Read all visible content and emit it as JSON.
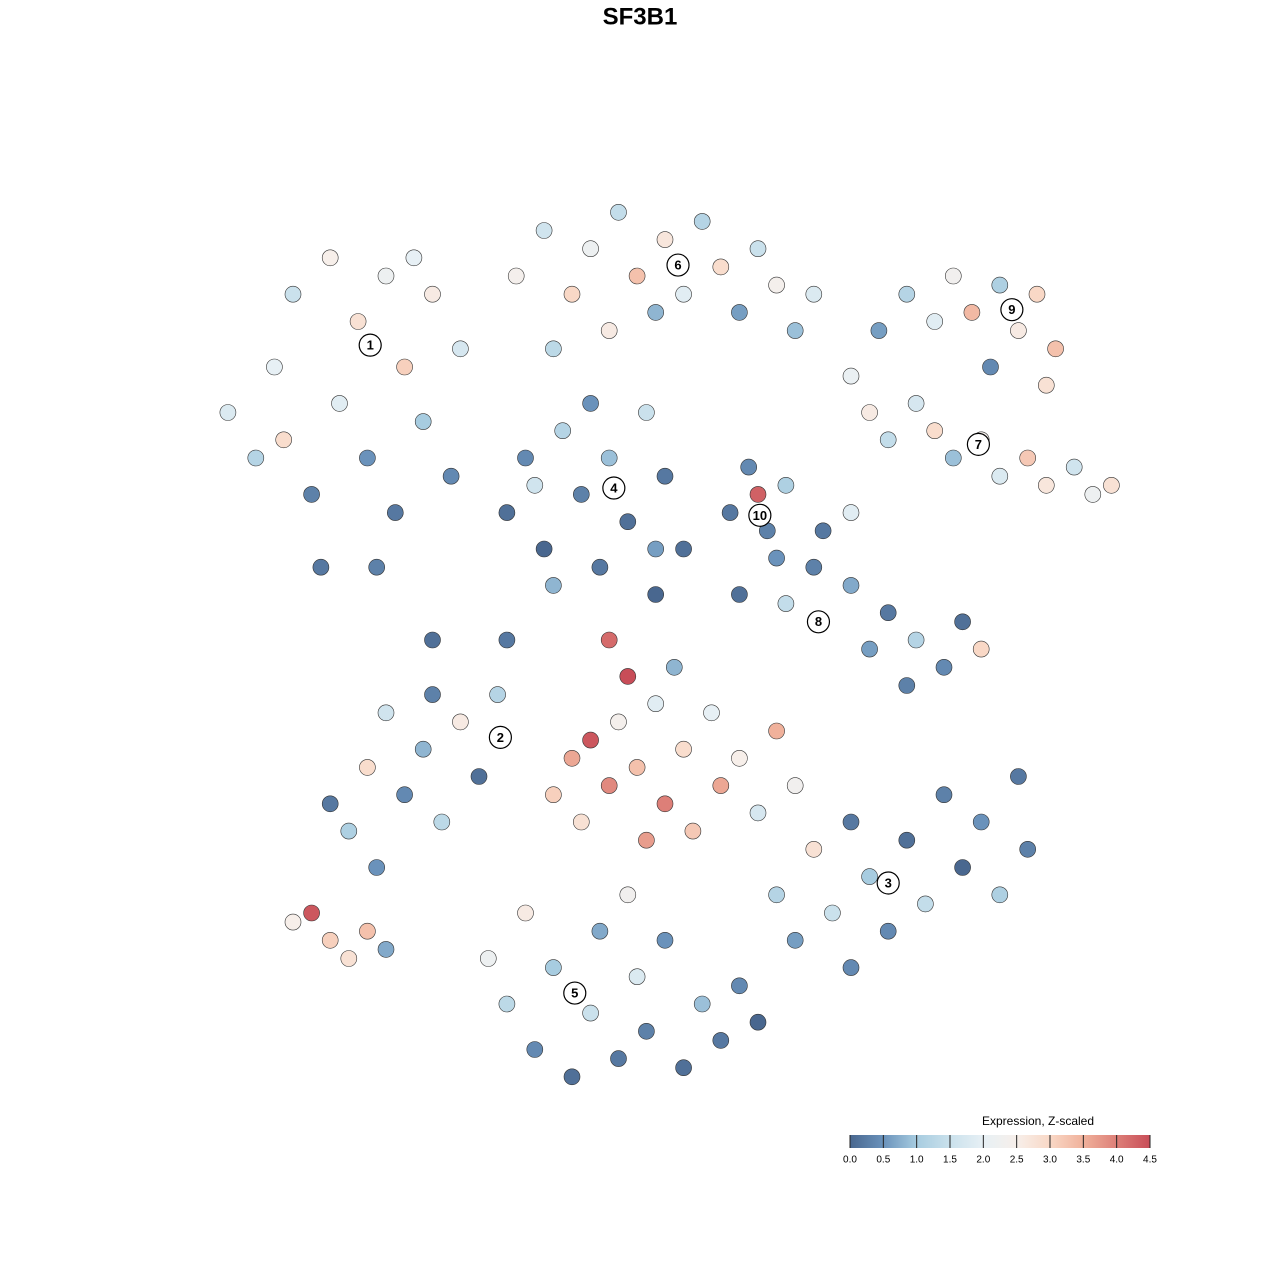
{
  "chart_data": {
    "type": "scatter",
    "title": "SF3B1",
    "xlim": [
      0,
      100
    ],
    "ylim": [
      0,
      100
    ],
    "x": [
      3,
      6,
      8,
      10,
      12,
      14,
      15,
      17,
      18,
      20,
      21,
      22,
      24,
      25,
      27,
      28,
      13,
      19,
      9,
      23,
      34,
      37,
      40,
      42,
      45,
      47,
      49,
      50,
      52,
      54,
      56,
      58,
      60,
      62,
      64,
      66,
      44,
      38,
      73,
      76,
      79,
      81,
      83,
      86,
      88,
      90,
      92,
      91,
      85,
      70,
      72,
      74,
      77,
      79,
      81,
      84,
      86,
      89,
      91,
      94,
      96,
      98,
      33,
      35,
      37,
      39,
      41,
      43,
      44,
      46,
      48,
      49,
      50,
      38,
      42,
      36,
      57,
      59,
      60,
      61,
      63,
      62,
      58,
      63,
      66,
      70,
      74,
      77,
      80,
      82,
      84,
      72,
      76,
      67,
      70,
      14,
      16,
      18,
      20,
      22,
      24,
      26,
      28,
      30,
      32,
      19,
      25,
      10,
      12,
      14,
      16,
      18,
      20,
      38,
      40,
      41,
      42,
      44,
      45,
      47,
      48,
      49,
      50,
      52,
      53,
      55,
      56,
      58,
      60,
      62,
      64,
      46,
      51,
      44,
      62,
      64,
      66,
      68,
      70,
      72,
      74,
      76,
      78,
      80,
      82,
      84,
      86,
      88,
      89,
      70,
      31,
      33,
      35,
      36,
      38,
      40,
      42,
      43,
      45,
      47,
      48,
      50,
      52,
      54,
      56,
      58,
      60,
      46,
      25,
      33,
      49,
      52
    ],
    "y": [
      75,
      70,
      80,
      88,
      66,
      92,
      76,
      85,
      70,
      90,
      64,
      80,
      74,
      88,
      68,
      82,
      58,
      58,
      72,
      92,
      90,
      95,
      88,
      93,
      97,
      90,
      86,
      94,
      88,
      96,
      91,
      86,
      93,
      89,
      84,
      88,
      84,
      82,
      84,
      88,
      85,
      90,
      86,
      89,
      84,
      88,
      82,
      78,
      80,
      79,
      75,
      72,
      76,
      73,
      70,
      72,
      68,
      70,
      67,
      69,
      66,
      67,
      64,
      70,
      60,
      73,
      66,
      58,
      70,
      63,
      75,
      60,
      68,
      56,
      76,
      67,
      64,
      69,
      66,
      62,
      67,
      59,
      55,
      54,
      58,
      56,
      53,
      50,
      47,
      52,
      49,
      49,
      45,
      62,
      64,
      32,
      29,
      36,
      42,
      33,
      38,
      30,
      41,
      35,
      44,
      25,
      44,
      19,
      20,
      17,
      15,
      18,
      16,
      33,
      37,
      30,
      39,
      34,
      41,
      36,
      28,
      43,
      32,
      38,
      29,
      42,
      34,
      37,
      31,
      40,
      34,
      46,
      47,
      50,
      22,
      17,
      27,
      20,
      30,
      24,
      18,
      28,
      21,
      33,
      25,
      30,
      22,
      35,
      27,
      14,
      15,
      10,
      20,
      5,
      14,
      2,
      9,
      18,
      4,
      13,
      7,
      17,
      3,
      10,
      6,
      12,
      8,
      22,
      50,
      50,
      55,
      60
    ],
    "values": [
      1.8,
      1.2,
      2.0,
      1.5,
      0.3,
      2.5,
      1.9,
      2.8,
      0.5,
      2.2,
      0.2,
      3.1,
      1.0,
      2.6,
      0.4,
      1.7,
      0.2,
      0.3,
      2.9,
      2.0,
      2.4,
      1.6,
      3.0,
      2.2,
      1.4,
      3.3,
      0.8,
      2.7,
      1.9,
      1.2,
      2.9,
      0.6,
      1.5,
      2.4,
      0.9,
      1.8,
      2.6,
      1.3,
      0.6,
      1.2,
      1.9,
      2.3,
      3.4,
      1.1,
      2.6,
      3.0,
      3.3,
      2.8,
      0.4,
      2.1,
      2.6,
      1.4,
      1.7,
      2.9,
      0.9,
      2.4,
      1.8,
      3.2,
      2.7,
      1.6,
      2.2,
      2.8,
      0.1,
      0.4,
      0.0,
      1.2,
      0.3,
      0.2,
      0.9,
      0.1,
      1.5,
      0.6,
      0.2,
      0.8,
      0.5,
      1.6,
      0.2,
      0.4,
      4.3,
      0.3,
      1.1,
      0.5,
      0.1,
      1.4,
      0.3,
      0.7,
      0.2,
      1.2,
      0.4,
      0.1,
      3.0,
      0.6,
      0.3,
      0.2,
      1.9,
      0.2,
      1.1,
      2.9,
      1.6,
      0.4,
      0.8,
      1.3,
      2.6,
      0.1,
      1.2,
      0.5,
      0.3,
      2.5,
      4.4,
      3.1,
      2.8,
      3.3,
      0.7,
      3.1,
      3.6,
      2.8,
      4.4,
      3.9,
      2.4,
      3.3,
      3.7,
      1.9,
      4.0,
      2.9,
      3.2,
      2.0,
      3.6,
      2.5,
      1.7,
      3.5,
      2.3,
      4.5,
      0.8,
      4.2,
      1.2,
      0.6,
      2.8,
      1.5,
      0.2,
      1.0,
      0.4,
      0.1,
      1.4,
      0.3,
      0.0,
      0.5,
      1.1,
      0.2,
      0.3,
      0.4,
      2.2,
      1.3,
      2.6,
      0.4,
      1.0,
      0.1,
      1.5,
      0.7,
      0.2,
      1.8,
      0.3,
      0.5,
      0.1,
      0.9,
      0.2,
      0.4,
      0.0,
      2.3,
      0.1,
      0.2,
      0.0,
      0.1
    ],
    "annotations": [
      {
        "text": "1",
        "x": 18.3,
        "y": 82.4
      },
      {
        "text": "2",
        "x": 32.3,
        "y": 39.3
      },
      {
        "text": "3",
        "x": 74,
        "y": 23.3
      },
      {
        "text": "4",
        "x": 44.5,
        "y": 66.7
      },
      {
        "text": "5",
        "x": 40.3,
        "y": 11.2
      },
      {
        "text": "6",
        "x": 51.4,
        "y": 91.2
      },
      {
        "text": "7",
        "x": 83.7,
        "y": 71.5
      },
      {
        "text": "8",
        "x": 66.5,
        "y": 52
      },
      {
        "text": "9",
        "x": 87.3,
        "y": 86.3
      },
      {
        "text": "10",
        "x": 60.2,
        "y": 63.7
      }
    ],
    "colorbar": {
      "title": "Expression, Z-scaled",
      "lim": [
        0,
        4.5
      ],
      "ticks": [
        {
          "value": 0,
          "label": "0.0"
        },
        {
          "value": 0.5,
          "label": "0.5"
        },
        {
          "value": 1,
          "label": "1.0"
        },
        {
          "value": 1.5,
          "label": "1.5"
        },
        {
          "value": 2,
          "label": "2.0"
        },
        {
          "value": 2.5,
          "label": "2.5"
        },
        {
          "value": 3,
          "label": "3.0"
        },
        {
          "value": 3.5,
          "label": "3.5"
        },
        {
          "value": 4,
          "label": "4.0"
        },
        {
          "value": 4.5,
          "label": "4.5"
        }
      ],
      "colors": [
        "#49678f",
        "#6a92bb",
        "#a7cce0",
        "#cae1ec",
        "#e7f0f5",
        "#f7efea",
        "#f9d8c6",
        "#f0b19b",
        "#dd7f78",
        "#c84d58"
      ]
    }
  }
}
